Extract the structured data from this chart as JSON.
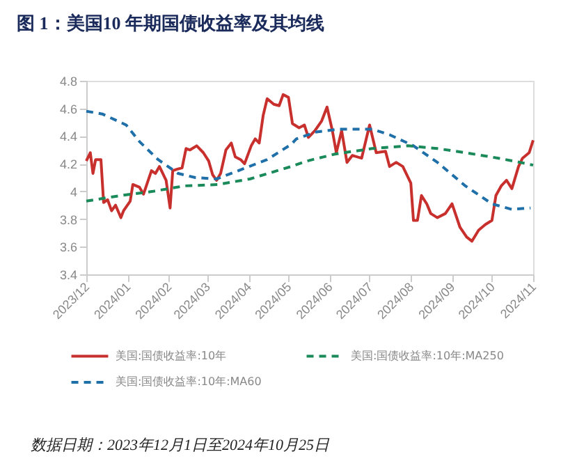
{
  "chart_data": {
    "type": "line",
    "title": "图 1：美国10 年期国债收益率及其均线",
    "annotations": [
      "数据日期：2023年12月1日至2024年10月25日"
    ],
    "xlim": [
      "2023-12-01",
      "2024-11-01"
    ],
    "xticks": [
      {
        "value": "2023-12-01",
        "label": "2023/12"
      },
      {
        "value": "2024-01-01",
        "label": "2024/01"
      },
      {
        "value": "2024-02-01",
        "label": "2024/02"
      },
      {
        "value": "2024-03-01",
        "label": "2024/03"
      },
      {
        "value": "2024-04-01",
        "label": "2024/04"
      },
      {
        "value": "2024-05-01",
        "label": "2024/05"
      },
      {
        "value": "2024-06-01",
        "label": "2024/06"
      },
      {
        "value": "2024-07-01",
        "label": "2024/07"
      },
      {
        "value": "2024-08-01",
        "label": "2024/08"
      },
      {
        "value": "2024-09-01",
        "label": "2024/09"
      },
      {
        "value": "2024-10-01",
        "label": "2024/10"
      },
      {
        "value": "2024-11-01",
        "label": "2024/11"
      }
    ],
    "ylim": [
      3.4,
      4.8
    ],
    "yticks": [
      3.4,
      3.6,
      3.8,
      {
        "value": 4,
        "label": "4"
      },
      4.2,
      4.4,
      4.6,
      4.8
    ],
    "grid": false,
    "legend": "bottom",
    "marker": "none",
    "series": [
      {
        "name": "美国:国债收益率:10年",
        "color": "#c8302e",
        "line_style": "solid",
        "x": [
          "2023-12-01",
          "2023-12-04",
          "2023-12-06",
          "2023-12-08",
          "2023-12-12",
          "2023-12-14",
          "2023-12-17",
          "2023-12-20",
          "2023-12-23",
          "2023-12-27",
          "2023-12-29",
          "2024-01-03",
          "2024-01-05",
          "2024-01-10",
          "2024-01-13",
          "2024-01-19",
          "2024-01-22",
          "2024-01-25",
          "2024-01-30",
          "2024-02-02",
          "2024-02-04",
          "2024-02-07",
          "2024-02-11",
          "2024-02-14",
          "2024-02-17",
          "2024-02-22",
          "2024-02-27",
          "2024-03-02",
          "2024-03-05",
          "2024-03-08",
          "2024-03-11",
          "2024-03-15",
          "2024-03-19",
          "2024-03-22",
          "2024-03-26",
          "2024-03-29",
          "2024-04-03",
          "2024-04-06",
          "2024-04-09",
          "2024-04-12",
          "2024-04-15",
          "2024-04-20",
          "2024-04-24",
          "2024-04-27",
          "2024-05-01",
          "2024-05-04",
          "2024-05-09",
          "2024-05-13",
          "2024-05-16",
          "2024-05-21",
          "2024-05-26",
          "2024-05-30",
          "2024-06-03",
          "2024-06-06",
          "2024-06-10",
          "2024-06-14",
          "2024-06-18",
          "2024-06-25",
          "2024-07-01",
          "2024-07-06",
          "2024-07-13",
          "2024-07-16",
          "2024-07-21",
          "2024-07-26",
          "2024-08-01",
          "2024-08-03",
          "2024-08-06",
          "2024-08-09",
          "2024-08-13",
          "2024-08-16",
          "2024-08-21",
          "2024-08-27",
          "2024-09-01",
          "2024-09-07",
          "2024-09-12",
          "2024-09-16",
          "2024-09-21",
          "2024-09-26",
          "2024-10-01",
          "2024-10-04",
          "2024-10-08",
          "2024-10-12",
          "2024-10-16",
          "2024-10-21",
          "2024-10-24",
          "2024-10-29",
          "2024-11-01"
        ],
        "values": [
          4.22,
          4.28,
          4.13,
          4.23,
          4.23,
          3.92,
          3.94,
          3.86,
          3.9,
          3.81,
          3.86,
          3.93,
          4.05,
          4.03,
          3.98,
          4.15,
          4.13,
          4.18,
          4.08,
          3.88,
          4.15,
          4.16,
          4.17,
          4.31,
          4.3,
          4.33,
          4.28,
          4.22,
          4.12,
          4.08,
          4.13,
          4.3,
          4.35,
          4.25,
          4.23,
          4.2,
          4.33,
          4.38,
          4.35,
          4.55,
          4.67,
          4.63,
          4.62,
          4.7,
          4.68,
          4.49,
          4.46,
          4.48,
          4.39,
          4.44,
          4.51,
          4.61,
          4.44,
          4.28,
          4.44,
          4.21,
          4.26,
          4.24,
          4.48,
          4.28,
          4.29,
          4.18,
          4.21,
          4.18,
          4.06,
          3.79,
          3.79,
          3.97,
          3.91,
          3.84,
          3.81,
          3.84,
          3.91,
          3.74,
          3.67,
          3.64,
          3.72,
          3.76,
          3.79,
          3.97,
          4.04,
          4.08,
          4.02,
          4.18,
          4.24,
          4.28,
          4.37
        ]
      },
      {
        "name": "美国:国债收益率:10年:MA60",
        "color": "#1f6fa8",
        "line_style": "dashed",
        "x": [
          "2023-12-01",
          "2023-12-13",
          "2023-12-31",
          "2024-01-10",
          "2024-01-24",
          "2024-02-08",
          "2024-02-21",
          "2024-03-08",
          "2024-03-27",
          "2024-04-15",
          "2024-05-03",
          "2024-05-07",
          "2024-05-22",
          "2024-06-08",
          "2024-07-03",
          "2024-07-16",
          "2024-08-03",
          "2024-08-21",
          "2024-09-11",
          "2024-10-01",
          "2024-10-16",
          "2024-10-30"
        ],
        "values": [
          4.58,
          4.56,
          4.48,
          4.36,
          4.23,
          4.13,
          4.1,
          4.09,
          4.16,
          4.23,
          4.34,
          4.38,
          4.43,
          4.45,
          4.45,
          4.41,
          4.33,
          4.21,
          4.04,
          3.91,
          3.87,
          3.88
        ]
      },
      {
        "name": "美国:国债收益率:10年:MA250",
        "color": "#1a8a5a",
        "line_style": "dashed",
        "x": [
          "2023-12-01",
          "2023-12-27",
          "2024-01-20",
          "2024-02-13",
          "2024-03-09",
          "2024-04-02",
          "2024-05-03",
          "2024-05-15",
          "2024-06-05",
          "2024-07-03",
          "2024-07-30",
          "2024-08-21",
          "2024-09-11",
          "2024-10-06",
          "2024-10-22",
          "2024-11-01"
        ],
        "values": [
          3.93,
          3.97,
          4.0,
          4.04,
          4.05,
          4.09,
          4.18,
          4.22,
          4.27,
          4.31,
          4.33,
          4.31,
          4.28,
          4.24,
          4.21,
          4.19
        ]
      }
    ]
  }
}
